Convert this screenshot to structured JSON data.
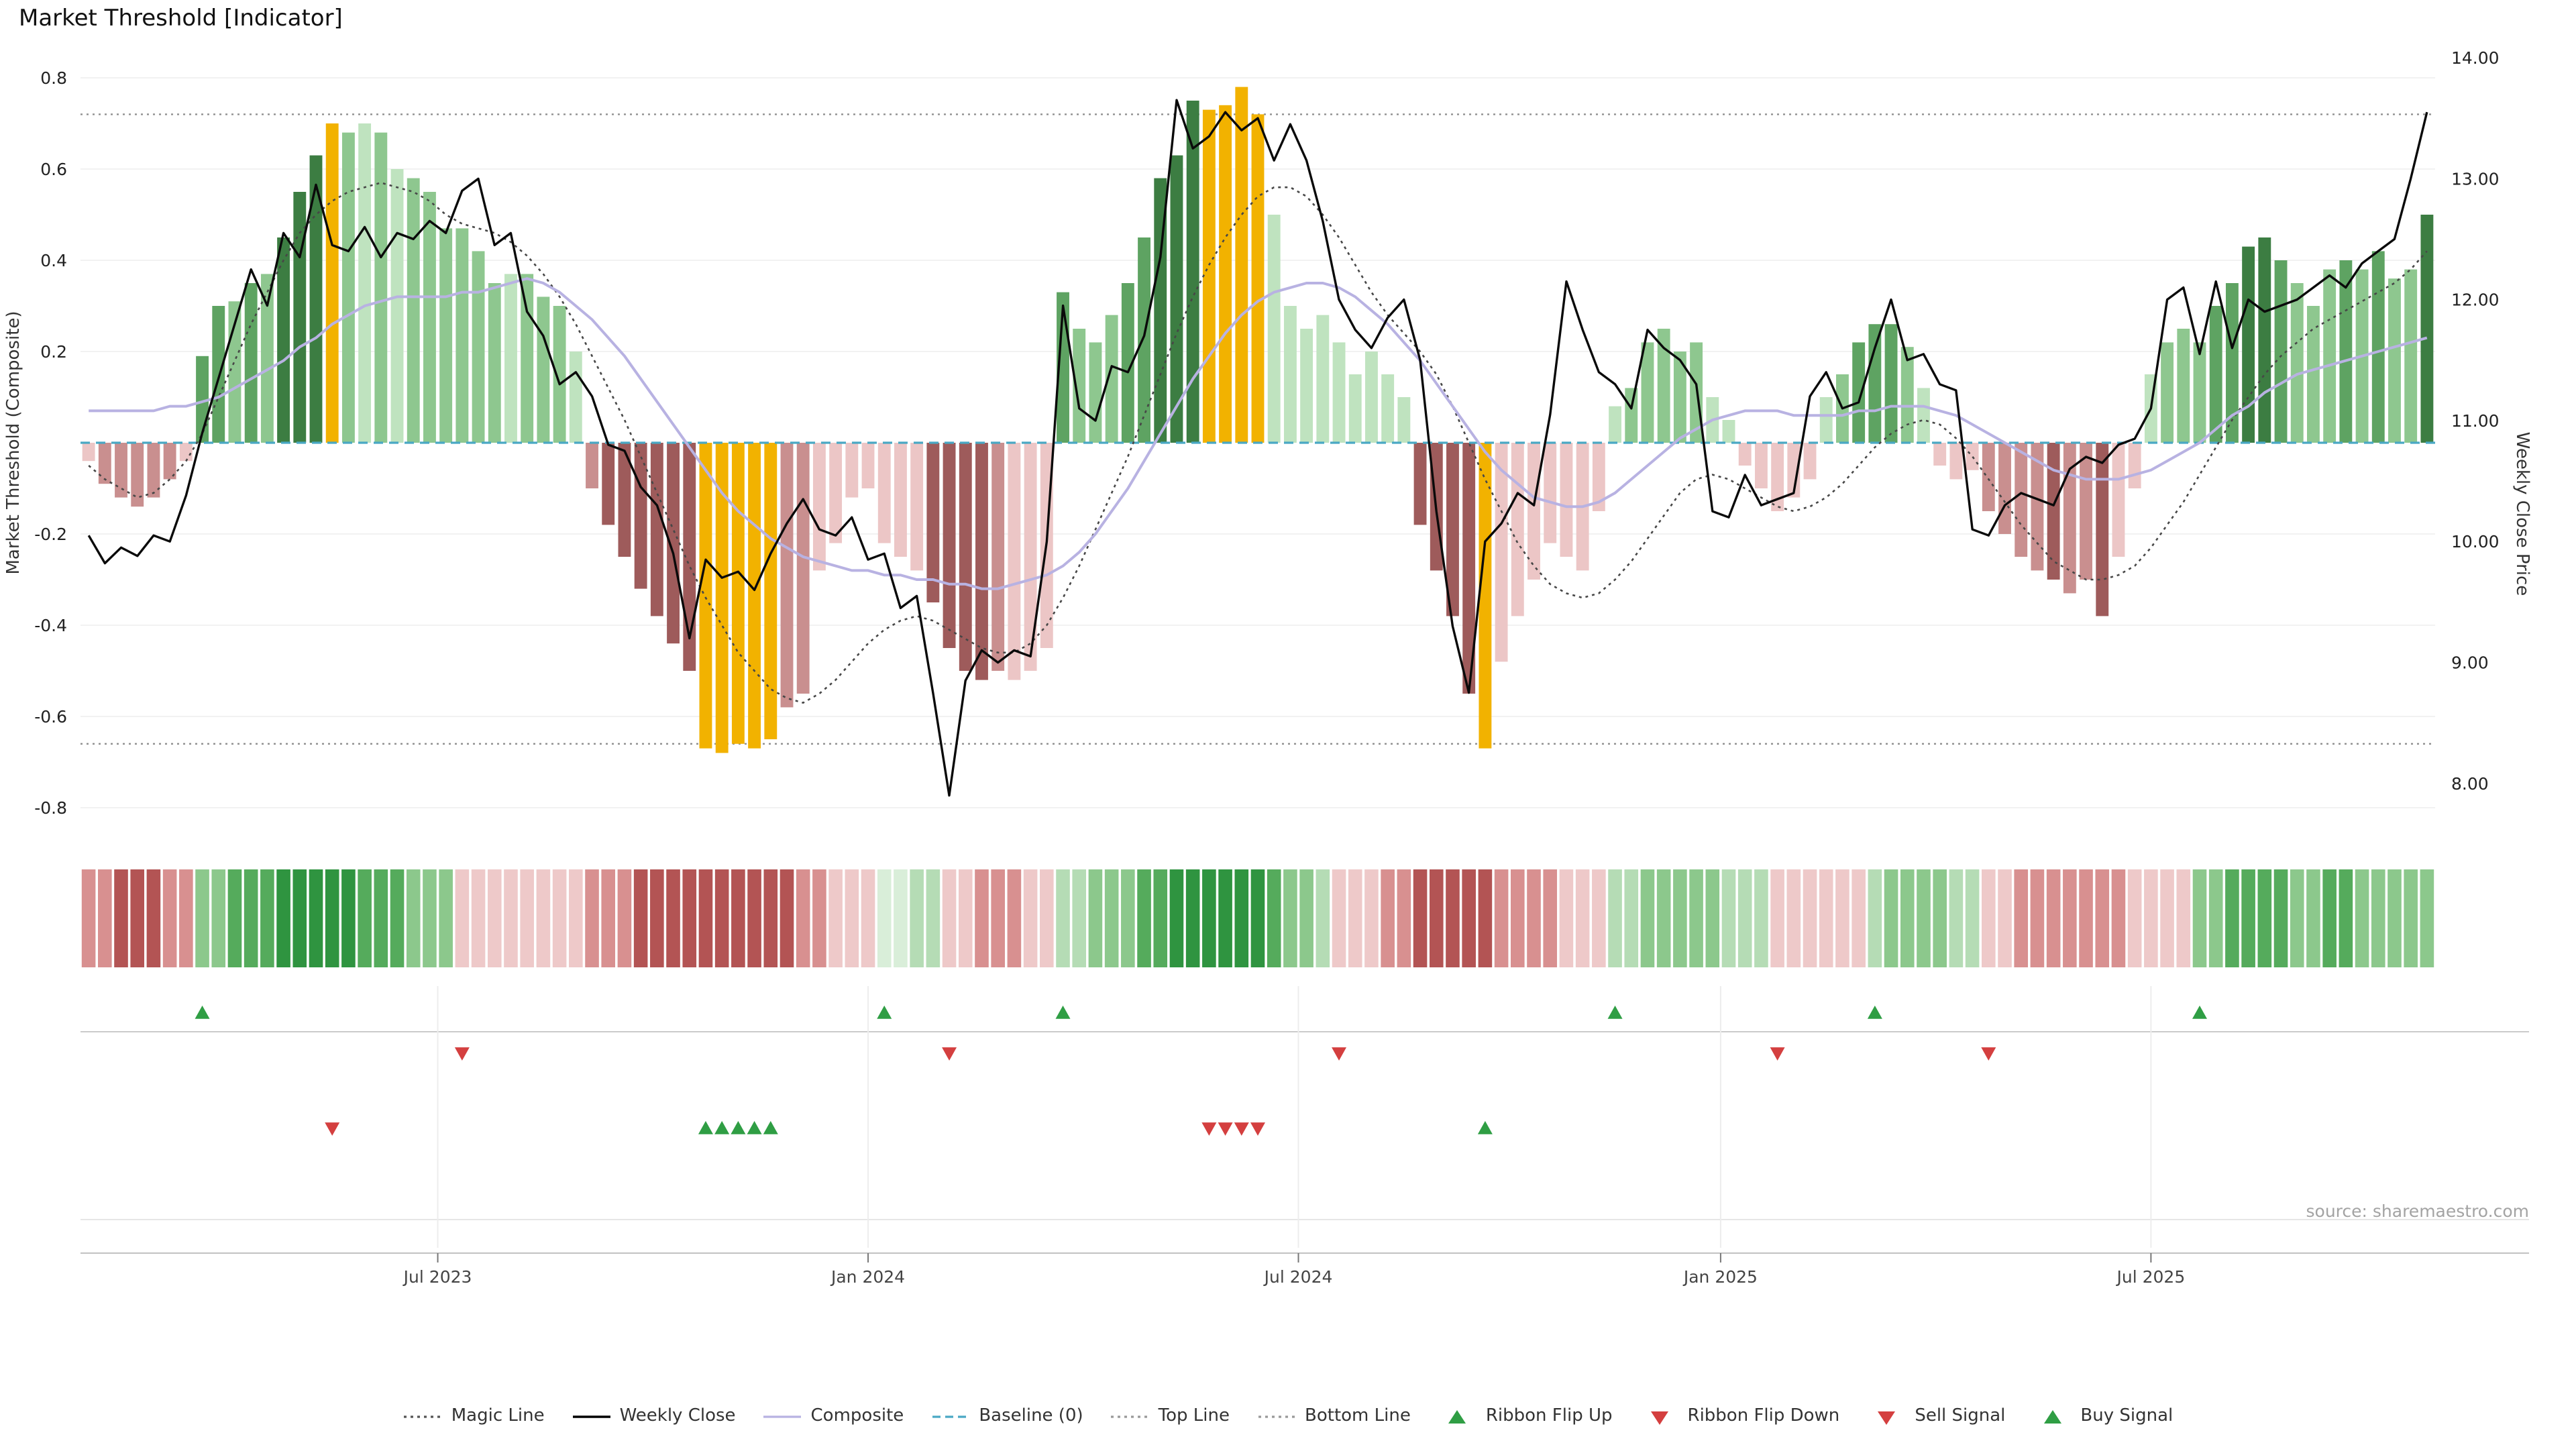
{
  "title": "Market Threshold [Indicator]",
  "source": "source: sharemaestro.com",
  "chart_data": {
    "type": "combo (bar histogram + lines + ribbon + signal markers)",
    "title": "Market Threshold [Indicator]",
    "x_axis": {
      "tick_labels": [
        "Jul 2023",
        "Jan 2024",
        "Jul 2024",
        "Jan 2025",
        "Jul 2025"
      ],
      "tick_weeks": [
        22,
        48.5,
        75,
        101,
        127.5
      ],
      "weeks_total": 145
    },
    "left_axis": {
      "label": "Market Threshold (Composite)",
      "ticks": [
        0.8,
        0.6,
        0.4,
        0.2,
        -0.2,
        -0.4,
        -0.6,
        -0.8
      ],
      "range": [
        -0.84,
        0.84
      ]
    },
    "right_axis": {
      "label": "Weekly Close Price",
      "ticks": [
        "14.00",
        "13.00",
        "12.00",
        "11.00",
        "10.00",
        "9.00",
        "8.00"
      ],
      "range": [
        7.65,
        14.0
      ]
    },
    "reference_lines": {
      "top_line": 0.72,
      "bottom_line": -0.66,
      "baseline": 0
    },
    "palette": {
      "g4": "#3c7d42",
      "g3": "#5ea362",
      "g2": "#8ec78f",
      "g1": "#bfe3bf",
      "or": "#f2b200",
      "r3": "#9e5b5b",
      "r2": "#c98f8f",
      "r1": "#ecc6c6"
    },
    "ribbon_palette": {
      "g4": "#2f9440",
      "g3": "#55ab5c",
      "g2": "#8cc88c",
      "g1": "#b5dcb5",
      "g0": "#d9eed9",
      "r3": "#b35454",
      "r2": "#d89090",
      "r1": "#eec9c9"
    },
    "threshold_bars": {
      "values": [
        -0.04,
        -0.09,
        -0.12,
        -0.14,
        -0.12,
        -0.08,
        -0.04,
        0.19,
        0.3,
        0.31,
        0.35,
        0.37,
        0.45,
        0.55,
        0.63,
        0.7,
        0.68,
        0.7,
        0.68,
        0.6,
        0.58,
        0.55,
        0.47,
        0.47,
        0.42,
        0.35,
        0.37,
        0.37,
        0.32,
        0.3,
        0.2,
        -0.1,
        -0.18,
        -0.25,
        -0.32,
        -0.38,
        -0.44,
        -0.5,
        -0.67,
        -0.68,
        -0.66,
        -0.67,
        -0.65,
        -0.58,
        -0.55,
        -0.28,
        -0.22,
        -0.12,
        -0.1,
        -0.22,
        -0.25,
        -0.28,
        -0.35,
        -0.45,
        -0.5,
        -0.52,
        -0.5,
        -0.52,
        -0.5,
        -0.45,
        0.33,
        0.25,
        0.22,
        0.28,
        0.35,
        0.45,
        0.58,
        0.63,
        0.75,
        0.73,
        0.74,
        0.78,
        0.72,
        0.5,
        0.3,
        0.25,
        0.28,
        0.22,
        0.15,
        0.2,
        0.15,
        0.1,
        -0.18,
        -0.28,
        -0.38,
        -0.55,
        -0.67,
        -0.48,
        -0.38,
        -0.3,
        -0.22,
        -0.25,
        -0.28,
        -0.15,
        0.08,
        0.12,
        0.22,
        0.25,
        0.2,
        0.22,
        0.1,
        0.05,
        -0.05,
        -0.1,
        -0.15,
        -0.12,
        -0.08,
        0.1,
        0.15,
        0.22,
        0.26,
        0.26,
        0.21,
        0.12,
        -0.05,
        -0.08,
        -0.06,
        -0.15,
        -0.2,
        -0.25,
        -0.28,
        -0.3,
        -0.33,
        -0.3,
        -0.38,
        -0.25,
        -0.1,
        0.15,
        0.22,
        0.25,
        0.22,
        0.3,
        0.35,
        0.43,
        0.45,
        0.4,
        0.35,
        0.3,
        0.38,
        0.4,
        0.38,
        0.42,
        0.36,
        0.38,
        0.5
      ],
      "colors": [
        "r1",
        "r2",
        "r2",
        "r2",
        "r2",
        "r2",
        "r1",
        "g3",
        "g3",
        "g2",
        "g3",
        "g2",
        "g4",
        "g4",
        "g4",
        "or",
        "g2",
        "g1",
        "g2",
        "g1",
        "g2",
        "g2",
        "g2",
        "g2",
        "g2",
        "g2",
        "g1",
        "g2",
        "g2",
        "g2",
        "g1",
        "r2",
        "r3",
        "r3",
        "r3",
        "r3",
        "r3",
        "r3",
        "or",
        "or",
        "or",
        "or",
        "or",
        "r2",
        "r2",
        "r1",
        "r1",
        "r1",
        "r1",
        "r1",
        "r1",
        "r1",
        "r3",
        "r3",
        "r3",
        "r3",
        "r2",
        "r1",
        "r1",
        "r1",
        "g3",
        "g2",
        "g2",
        "g2",
        "g3",
        "g3",
        "g4",
        "g4",
        "g4",
        "or",
        "or",
        "or",
        "or",
        "g1",
        "g1",
        "g1",
        "g1",
        "g1",
        "g1",
        "g1",
        "g1",
        "g1",
        "r3",
        "r3",
        "r3",
        "r3",
        "or",
        "r1",
        "r1",
        "r1",
        "r1",
        "r1",
        "r1",
        "r1",
        "g1",
        "g2",
        "g2",
        "g2",
        "g2",
        "g2",
        "g1",
        "g1",
        "r1",
        "r1",
        "r1",
        "r1",
        "r1",
        "g1",
        "g2",
        "g3",
        "g3",
        "g3",
        "g2",
        "g1",
        "r1",
        "r1",
        "r1",
        "r2",
        "r2",
        "r2",
        "r2",
        "r3",
        "r2",
        "r2",
        "r3",
        "r1",
        "r1",
        "g1",
        "g2",
        "g2",
        "g2",
        "g3",
        "g3",
        "g4",
        "g4",
        "g3",
        "g2",
        "g2",
        "g2",
        "g3",
        "g2",
        "g3",
        "g2",
        "g2",
        "g4"
      ]
    },
    "series": {
      "weekly_close": [
        10.05,
        9.82,
        9.95,
        9.88,
        10.05,
        10.0,
        10.38,
        10.9,
        11.35,
        11.8,
        12.25,
        11.95,
        12.55,
        12.35,
        12.95,
        12.45,
        12.4,
        12.6,
        12.35,
        12.55,
        12.5,
        12.65,
        12.55,
        12.9,
        13.0,
        12.45,
        12.55,
        11.9,
        11.7,
        11.3,
        11.4,
        11.2,
        10.8,
        10.75,
        10.45,
        10.3,
        9.9,
        9.2,
        9.85,
        9.7,
        9.75,
        9.6,
        9.9,
        10.15,
        10.35,
        10.1,
        10.05,
        10.2,
        9.85,
        9.9,
        9.45,
        9.55,
        8.75,
        7.9,
        8.85,
        9.1,
        9.0,
        9.1,
        9.05,
        10.0,
        11.95,
        11.1,
        11.0,
        11.45,
        11.4,
        11.7,
        12.35,
        13.65,
        13.25,
        13.35,
        13.55,
        13.4,
        13.5,
        13.15,
        13.45,
        13.15,
        12.65,
        12.0,
        11.75,
        11.6,
        11.85,
        12.0,
        11.5,
        10.25,
        9.3,
        8.75,
        10.0,
        10.15,
        10.4,
        10.3,
        11.05,
        12.15,
        11.75,
        11.4,
        11.3,
        11.1,
        11.75,
        11.6,
        11.5,
        11.3,
        10.25,
        10.2,
        10.55,
        10.3,
        10.35,
        10.4,
        11.2,
        11.4,
        11.1,
        11.15,
        11.6,
        12.0,
        11.5,
        11.55,
        11.3,
        11.25,
        10.1,
        10.05,
        10.3,
        10.4,
        10.35,
        10.3,
        10.6,
        10.7,
        10.65,
        10.8,
        10.85,
        11.1,
        12.0,
        12.1,
        11.55,
        12.15,
        11.6,
        12.0,
        11.9,
        11.95,
        12.0,
        12.1,
        12.2,
        12.1,
        12.3,
        12.4,
        12.5,
        13.0,
        13.55
      ],
      "composite": [
        0.07,
        0.07,
        0.07,
        0.07,
        0.07,
        0.08,
        0.08,
        0.09,
        0.1,
        0.12,
        0.14,
        0.16,
        0.18,
        0.21,
        0.23,
        0.26,
        0.28,
        0.3,
        0.31,
        0.32,
        0.32,
        0.32,
        0.32,
        0.33,
        0.33,
        0.34,
        0.35,
        0.36,
        0.35,
        0.33,
        0.3,
        0.27,
        0.23,
        0.19,
        0.14,
        0.09,
        0.04,
        -0.01,
        -0.06,
        -0.11,
        -0.15,
        -0.18,
        -0.21,
        -0.23,
        -0.25,
        -0.26,
        -0.27,
        -0.28,
        -0.28,
        -0.29,
        -0.29,
        -0.3,
        -0.3,
        -0.31,
        -0.31,
        -0.32,
        -0.32,
        -0.31,
        -0.3,
        -0.29,
        -0.27,
        -0.24,
        -0.2,
        -0.15,
        -0.1,
        -0.04,
        0.02,
        0.08,
        0.14,
        0.19,
        0.24,
        0.28,
        0.31,
        0.33,
        0.34,
        0.35,
        0.35,
        0.34,
        0.32,
        0.29,
        0.26,
        0.22,
        0.18,
        0.13,
        0.08,
        0.03,
        -0.02,
        -0.06,
        -0.09,
        -0.12,
        -0.13,
        -0.14,
        -0.14,
        -0.13,
        -0.11,
        -0.08,
        -0.05,
        -0.02,
        0.01,
        0.03,
        0.05,
        0.06,
        0.07,
        0.07,
        0.07,
        0.06,
        0.06,
        0.06,
        0.06,
        0.07,
        0.07,
        0.08,
        0.08,
        0.08,
        0.07,
        0.06,
        0.04,
        0.02,
        0.0,
        -0.02,
        -0.04,
        -0.06,
        -0.07,
        -0.08,
        -0.08,
        -0.08,
        -0.07,
        -0.06,
        -0.04,
        -0.02,
        0.0,
        0.03,
        0.06,
        0.08,
        0.11,
        0.13,
        0.15,
        0.16,
        0.17,
        0.18,
        0.19,
        0.2,
        0.21,
        0.22,
        0.23
      ],
      "magic_line": [
        -0.05,
        -0.08,
        -0.1,
        -0.12,
        -0.11,
        -0.08,
        -0.04,
        0.02,
        0.1,
        0.18,
        0.26,
        0.33,
        0.4,
        0.46,
        0.5,
        0.53,
        0.55,
        0.56,
        0.57,
        0.56,
        0.55,
        0.53,
        0.5,
        0.48,
        0.47,
        0.46,
        0.44,
        0.41,
        0.37,
        0.32,
        0.26,
        0.19,
        0.12,
        0.05,
        -0.03,
        -0.11,
        -0.19,
        -0.27,
        -0.34,
        -0.4,
        -0.46,
        -0.5,
        -0.54,
        -0.56,
        -0.57,
        -0.55,
        -0.52,
        -0.48,
        -0.44,
        -0.41,
        -0.39,
        -0.38,
        -0.39,
        -0.41,
        -0.43,
        -0.45,
        -0.46,
        -0.46,
        -0.44,
        -0.4,
        -0.34,
        -0.27,
        -0.19,
        -0.11,
        -0.03,
        0.06,
        0.15,
        0.24,
        0.32,
        0.39,
        0.45,
        0.5,
        0.54,
        0.56,
        0.56,
        0.54,
        0.5,
        0.45,
        0.39,
        0.33,
        0.28,
        0.24,
        0.2,
        0.15,
        0.08,
        0.0,
        -0.08,
        -0.15,
        -0.22,
        -0.27,
        -0.31,
        -0.33,
        -0.34,
        -0.33,
        -0.3,
        -0.26,
        -0.21,
        -0.16,
        -0.11,
        -0.08,
        -0.07,
        -0.08,
        -0.1,
        -0.12,
        -0.14,
        -0.15,
        -0.14,
        -0.12,
        -0.09,
        -0.05,
        -0.01,
        0.02,
        0.04,
        0.05,
        0.04,
        0.01,
        -0.03,
        -0.08,
        -0.13,
        -0.18,
        -0.22,
        -0.26,
        -0.28,
        -0.3,
        -0.3,
        -0.29,
        -0.27,
        -0.23,
        -0.18,
        -0.13,
        -0.07,
        -0.01,
        0.05,
        0.1,
        0.15,
        0.19,
        0.22,
        0.25,
        0.27,
        0.29,
        0.31,
        0.33,
        0.35,
        0.38,
        0.42
      ]
    },
    "ribbon": [
      "r2",
      "r2",
      "r3",
      "r3",
      "r3",
      "r2",
      "r2",
      "g2",
      "g2",
      "g3",
      "g3",
      "g3",
      "g4",
      "g4",
      "g4",
      "g4",
      "g4",
      "g3",
      "g3",
      "g3",
      "g2",
      "g2",
      "g2",
      "r1",
      "r1",
      "r1",
      "r1",
      "r1",
      "r1",
      "r1",
      "r1",
      "r2",
      "r2",
      "r2",
      "r3",
      "r3",
      "r3",
      "r3",
      "r3",
      "r3",
      "r3",
      "r3",
      "r3",
      "r3",
      "r2",
      "r2",
      "r1",
      "r1",
      "r1",
      "g0",
      "g0",
      "g1",
      "g1",
      "r1",
      "r1",
      "r2",
      "r2",
      "r2",
      "r1",
      "r1",
      "g1",
      "g1",
      "g2",
      "g2",
      "g2",
      "g3",
      "g3",
      "g4",
      "g4",
      "g4",
      "g4",
      "g4",
      "g4",
      "g3",
      "g2",
      "g2",
      "g1",
      "r1",
      "r1",
      "r1",
      "r2",
      "r2",
      "r3",
      "r3",
      "r3",
      "r3",
      "r3",
      "r2",
      "r2",
      "r2",
      "r2",
      "r1",
      "r1",
      "r1",
      "g1",
      "g1",
      "g2",
      "g2",
      "g2",
      "g2",
      "g2",
      "g1",
      "g1",
      "g1",
      "r1",
      "r1",
      "r1",
      "r1",
      "r1",
      "r1",
      "g1",
      "g2",
      "g2",
      "g2",
      "g2",
      "g1",
      "g1",
      "r1",
      "r1",
      "r2",
      "r2",
      "r2",
      "r2",
      "r2",
      "r2",
      "r2",
      "r1",
      "r1",
      "r1",
      "r1",
      "g2",
      "g2",
      "g3",
      "g3",
      "g3",
      "g3",
      "g2",
      "g2",
      "g3",
      "g3",
      "g2",
      "g2",
      "g2",
      "g2",
      "g2"
    ],
    "signals": {
      "ribbon_flip_up_weeks": [
        7,
        49,
        60,
        94,
        110,
        130
      ],
      "ribbon_flip_down_weeks": [
        23,
        53,
        77,
        104,
        117
      ],
      "sell_signal_weeks": [
        15,
        69,
        70,
        71,
        72
      ],
      "buy_signal_weeks": [
        38,
        39,
        40,
        41,
        42,
        86
      ]
    },
    "signal_colors": {
      "up": "#2f9e44",
      "down": "#d43f3f"
    }
  },
  "legend": {
    "items": [
      {
        "label": "Magic Line",
        "swatch": "dotted",
        "color": "#555555"
      },
      {
        "label": "Weekly Close",
        "swatch": "solid",
        "color": "#000000"
      },
      {
        "label": "Composite",
        "swatch": "solid",
        "color": "#b8b2e2"
      },
      {
        "label": "Baseline (0)",
        "swatch": "dashed",
        "color": "#49a8c4"
      },
      {
        "label": "Top Line",
        "swatch": "dotted",
        "color": "#999999"
      },
      {
        "label": "Bottom Line",
        "swatch": "dotted",
        "color": "#999999"
      },
      {
        "label": "Ribbon Flip Up",
        "swatch": "tri-up",
        "color": "#2f9e44"
      },
      {
        "label": "Ribbon Flip Down",
        "swatch": "tri-down",
        "color": "#d43f3f"
      },
      {
        "label": "Sell Signal",
        "swatch": "tri-down",
        "color": "#d43f3f"
      },
      {
        "label": "Buy Signal",
        "swatch": "tri-up",
        "color": "#2f9e44"
      }
    ]
  }
}
